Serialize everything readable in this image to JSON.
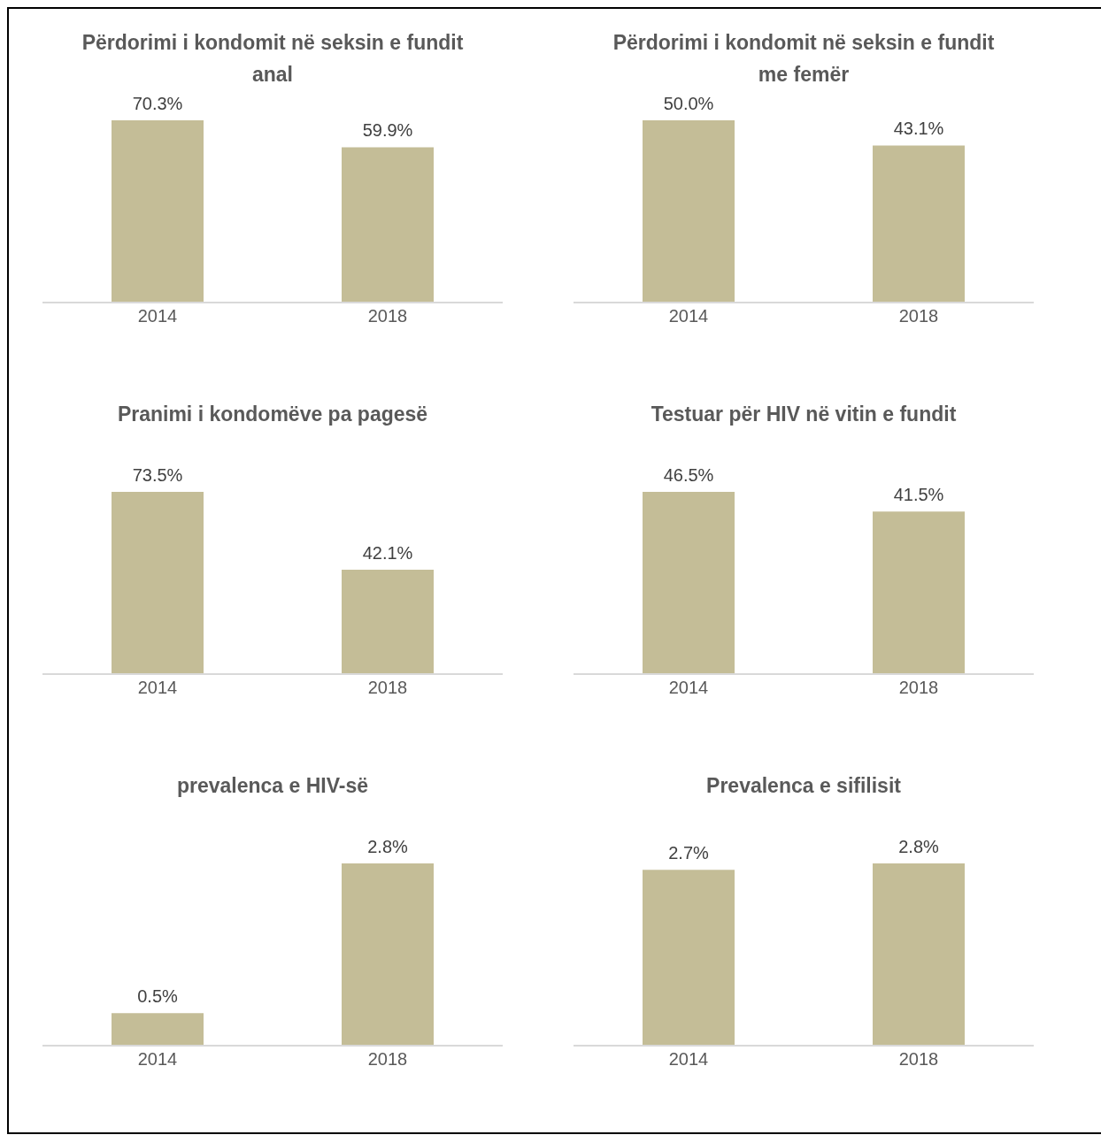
{
  "chart_data": [
    {
      "type": "bar",
      "title": "Përdorimi i kondomit në seksin e fundit anal",
      "categories": [
        "2014",
        "2018"
      ],
      "values": [
        70.3,
        59.9
      ],
      "value_labels": [
        "70.3%",
        "59.9%"
      ],
      "color": "#c4bd97",
      "grid": false,
      "legend": false
    },
    {
      "type": "bar",
      "title": "Përdorimi i kondomit në seksin e fundit me femër",
      "categories": [
        "2014",
        "2018"
      ],
      "values": [
        50.0,
        43.1
      ],
      "value_labels": [
        "50.0%",
        "43.1%"
      ],
      "color": "#c4bd97",
      "grid": false,
      "legend": false
    },
    {
      "type": "bar",
      "title": "Pranimi i kondomëve pa pagesë",
      "categories": [
        "2014",
        "2018"
      ],
      "values": [
        73.5,
        42.1
      ],
      "value_labels": [
        "73.5%",
        "42.1%"
      ],
      "color": "#c4bd97",
      "grid": false,
      "legend": false
    },
    {
      "type": "bar",
      "title": "Testuar për HIV në vitin e fundit",
      "categories": [
        "2014",
        "2018"
      ],
      "values": [
        46.5,
        41.5
      ],
      "value_labels": [
        "46.5%",
        "41.5%"
      ],
      "color": "#c4bd97",
      "grid": false,
      "legend": false
    },
    {
      "type": "bar",
      "title": "prevalenca e HIV-së",
      "categories": [
        "2014",
        "2018"
      ],
      "values": [
        0.5,
        2.8
      ],
      "value_labels": [
        "0.5%",
        "2.8%"
      ],
      "color": "#c4bd97",
      "grid": false,
      "legend": false
    },
    {
      "type": "bar",
      "title": "Prevalenca e sifilisit",
      "categories": [
        "2014",
        "2018"
      ],
      "values": [
        2.7,
        2.8
      ],
      "value_labels": [
        "2.7%",
        "2.8%"
      ],
      "color": "#c4bd97",
      "grid": false,
      "legend": false
    }
  ]
}
